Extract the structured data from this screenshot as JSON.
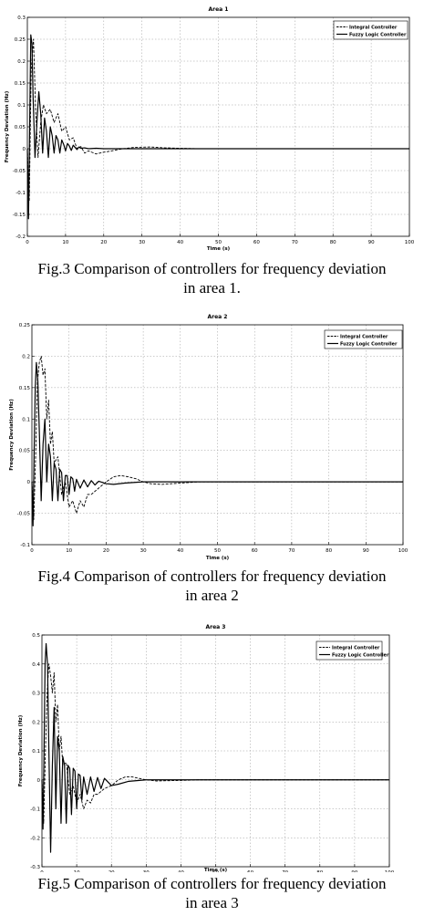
{
  "chart_data": [
    {
      "type": "line",
      "title": "Area 1",
      "xlabel": "Time (s)",
      "ylabel": "Frequency Deviation (Hz)",
      "xlim": [
        0,
        100
      ],
      "ylim": [
        -0.2,
        0.3
      ],
      "xticks": [
        0,
        10,
        20,
        30,
        40,
        50,
        60,
        70,
        80,
        90,
        100
      ],
      "yticks": [
        -0.2,
        -0.15,
        -0.1,
        -0.05,
        0,
        0.05,
        0.1,
        0.15,
        0.2,
        0.25,
        0.3
      ],
      "yticklabels": [
        "-0.2",
        "-0.15",
        "-0.1",
        "-0.05",
        "0",
        "0.05",
        "0.1",
        "0.15",
        "0.2",
        "0.25",
        "0.3"
      ],
      "grid": true,
      "legend": "top-right",
      "series": [
        {
          "name": "Integral Controller",
          "style": "dashed",
          "x": [
            0,
            0.5,
            1.0,
            1.6,
            2.2,
            2.8,
            3.5,
            4.2,
            5.0,
            6.0,
            7.0,
            8.0,
            9.0,
            10.0,
            11.0,
            12.0,
            13.0,
            14.0,
            15.0,
            16.0,
            18.0,
            20.0,
            22.0,
            25.0,
            28.0,
            32.0,
            36.0,
            40.0,
            45.0,
            50.0,
            55.0,
            60.0,
            70.0,
            80.0,
            90.0,
            100.0
          ],
          "y": [
            0,
            -0.12,
            0.18,
            0.25,
            0.08,
            -0.02,
            0.06,
            0.1,
            0.08,
            0.09,
            0.06,
            0.08,
            0.04,
            0.05,
            0.02,
            0.025,
            0.0,
            0.005,
            -0.01,
            -0.005,
            -0.012,
            -0.008,
            -0.005,
            0.0,
            0.003,
            0.004,
            0.002,
            0.001,
            0.0,
            0.0,
            0.0,
            0.0,
            0.0,
            0.0,
            0.0,
            0.0
          ]
        },
        {
          "name": "Fuzzy Logic Controller",
          "style": "solid",
          "x": [
            0,
            0.3,
            0.6,
            0.9,
            1.2,
            1.5,
            2.0,
            2.5,
            3.0,
            3.5,
            4.0,
            4.5,
            5.0,
            5.5,
            6.0,
            6.5,
            7.0,
            7.5,
            8.0,
            8.5,
            9.0,
            9.5,
            10.0,
            10.5,
            11.0,
            11.5,
            12.0,
            12.5,
            13.0,
            13.5,
            14.0,
            15.0,
            16.0,
            18.0,
            20.0,
            25.0,
            30.0,
            40.0,
            50.0,
            60.0,
            70.0,
            80.0,
            90.0,
            100.0
          ],
          "y": [
            0,
            -0.16,
            0.05,
            0.26,
            0.24,
            0.12,
            -0.02,
            0.06,
            0.13,
            0.08,
            -0.01,
            0.07,
            0.04,
            -0.02,
            0.05,
            0.03,
            -0.01,
            0.03,
            0.02,
            -0.01,
            0.02,
            0.01,
            -0.005,
            0.012,
            0.006,
            -0.004,
            0.008,
            0.003,
            -0.002,
            0.004,
            0.001,
            0.002,
            0.0,
            0.001,
            0.0,
            0.0,
            0.0,
            0.0,
            0.0,
            0.0,
            0.0,
            0.0,
            0.0,
            0.0
          ]
        }
      ]
    },
    {
      "type": "line",
      "title": "Area 2",
      "xlabel": "Time (s)",
      "ylabel": "Frequency Deviation (Hz)",
      "xlim": [
        0,
        100
      ],
      "ylim": [
        -0.1,
        0.25
      ],
      "xticks": [
        0,
        10,
        20,
        30,
        40,
        50,
        60,
        70,
        80,
        90,
        100
      ],
      "yticks": [
        -0.1,
        -0.05,
        0,
        0.05,
        0.1,
        0.15,
        0.2,
        0.25
      ],
      "yticklabels": [
        "-0.1",
        "-0.05",
        "0",
        "0.05",
        "0.1",
        "0.15",
        "0.2",
        "0.25"
      ],
      "grid": true,
      "legend": "top-right",
      "series": [
        {
          "name": "Integral Controller",
          "style": "dashed",
          "x": [
            0,
            0.5,
            1.0,
            1.5,
            2.0,
            2.5,
            3.0,
            3.5,
            4.0,
            4.5,
            5.0,
            5.5,
            6.0,
            7.0,
            8.0,
            9.0,
            10.0,
            11.0,
            12.0,
            13.0,
            14.0,
            15.0,
            16.0,
            18.0,
            20.0,
            22.0,
            24.0,
            26.0,
            28.0,
            30.0,
            32.0,
            35.0,
            40.0,
            45.0,
            50.0,
            60.0,
            70.0,
            80.0,
            90.0,
            100.0
          ],
          "y": [
            0,
            -0.06,
            0.04,
            0.16,
            0.19,
            0.2,
            0.17,
            0.18,
            0.1,
            0.13,
            0.06,
            0.08,
            0.03,
            0.04,
            -0.02,
            0.0,
            -0.04,
            -0.03,
            -0.05,
            -0.03,
            -0.04,
            -0.02,
            -0.02,
            -0.01,
            0.0,
            0.008,
            0.01,
            0.008,
            0.005,
            0.0,
            -0.003,
            -0.004,
            -0.002,
            0.0,
            0.0,
            0.0,
            0.0,
            0.0,
            0.0,
            0.0
          ]
        },
        {
          "name": "Fuzzy Logic Controller",
          "style": "solid",
          "x": [
            0,
            0.3,
            0.6,
            0.9,
            1.2,
            1.6,
            2.0,
            2.5,
            3.0,
            3.5,
            4.0,
            4.5,
            5.0,
            5.5,
            6.0,
            6.5,
            7.0,
            7.5,
            8.0,
            8.5,
            9.0,
            9.5,
            10.0,
            10.5,
            11.0,
            11.5,
            12.0,
            13.0,
            14.0,
            15.0,
            16.0,
            17.0,
            18.0,
            20.0,
            22.0,
            25.0,
            30.0,
            40.0,
            50.0,
            60.0,
            70.0,
            80.0,
            90.0,
            100.0
          ],
          "y": [
            0,
            -0.07,
            0.05,
            0.15,
            0.19,
            0.16,
            0.08,
            -0.03,
            0.06,
            0.1,
            0.0,
            0.06,
            0.04,
            -0.03,
            0.03,
            0.02,
            -0.03,
            0.02,
            0.015,
            -0.03,
            0.01,
            0.01,
            -0.02,
            0.008,
            0.005,
            -0.015,
            0.004,
            -0.01,
            0.003,
            -0.008,
            0.002,
            -0.005,
            0.001,
            -0.003,
            -0.004,
            -0.002,
            0.0,
            0.0,
            0.0,
            0.0,
            0.0,
            0.0,
            0.0,
            0.0
          ]
        }
      ]
    },
    {
      "type": "line",
      "title": "Area 3",
      "xlabel": "Time (s)",
      "ylabel": "Frequency Deviation (Hz)",
      "xlim": [
        0,
        100
      ],
      "ylim": [
        -0.3,
        0.5
      ],
      "xticks": [
        0,
        10,
        20,
        30,
        40,
        50,
        60,
        70,
        80,
        90,
        100
      ],
      "yticks": [
        -0.3,
        -0.2,
        -0.1,
        0,
        0.1,
        0.2,
        0.3,
        0.4,
        0.5
      ],
      "yticklabels": [
        "-0.3",
        "-0.2",
        "-0.1",
        "0",
        "0.1",
        "0.2",
        "0.3",
        "0.4",
        "0.5"
      ],
      "grid": true,
      "legend": "top-right",
      "series": [
        {
          "name": "Integral Controller",
          "style": "dashed",
          "x": [
            0,
            0.5,
            1.0,
            1.5,
            2.0,
            2.5,
            3.0,
            3.5,
            4.0,
            4.5,
            5.0,
            5.5,
            6.0,
            7.0,
            8.0,
            9.0,
            10.0,
            11.0,
            12.0,
            13.0,
            14.0,
            15.0,
            16.0,
            18.0,
            20.0,
            22.0,
            24.0,
            26.0,
            28.0,
            30.0,
            33.0,
            36.0,
            40.0,
            45.0,
            50.0,
            60.0,
            70.0,
            80.0,
            90.0,
            100.0
          ],
          "y": [
            0,
            -0.15,
            0.1,
            0.3,
            0.4,
            0.36,
            0.3,
            0.37,
            0.2,
            0.26,
            0.1,
            0.15,
            0.05,
            0.06,
            -0.05,
            -0.02,
            -0.08,
            -0.05,
            -0.1,
            -0.07,
            -0.08,
            -0.05,
            -0.05,
            -0.03,
            -0.02,
            0.0,
            0.01,
            0.01,
            0.005,
            0.0,
            -0.004,
            -0.003,
            -0.002,
            0.0,
            0.0,
            0.0,
            0.0,
            0.0,
            0.0,
            0.0
          ]
        },
        {
          "name": "Fuzzy Logic Controller",
          "style": "solid",
          "x": [
            0,
            0.3,
            0.6,
            0.9,
            1.2,
            1.6,
            2.0,
            2.5,
            3.0,
            3.5,
            4.0,
            4.5,
            5.0,
            5.5,
            6.0,
            6.5,
            7.0,
            7.5,
            8.0,
            8.5,
            9.0,
            9.5,
            10.0,
            10.5,
            11.0,
            11.5,
            12.0,
            13.0,
            14.0,
            15.0,
            16.0,
            17.0,
            18.0,
            20.0,
            22.0,
            25.0,
            30.0,
            40.0,
            50.0,
            60.0,
            70.0,
            80.0,
            90.0,
            100.0
          ],
          "y": [
            0,
            -0.17,
            0.1,
            0.4,
            0.47,
            0.4,
            0.1,
            -0.25,
            0.05,
            0.25,
            -0.1,
            0.15,
            0.1,
            -0.15,
            0.08,
            0.05,
            -0.15,
            0.05,
            0.04,
            -0.12,
            0.04,
            0.03,
            -0.1,
            0.02,
            0.015,
            -0.07,
            0.01,
            -0.05,
            0.01,
            -0.04,
            0.008,
            -0.03,
            0.005,
            -0.02,
            -0.015,
            -0.005,
            0.0,
            0.0,
            0.0,
            0.0,
            0.0,
            0.0,
            0.0,
            0.0
          ]
        }
      ]
    }
  ],
  "captions": [
    [
      "Fig.3 Comparison of controllers for frequency deviation",
      "in area 1."
    ],
    [
      "Fig.4 Comparison of controllers for frequency deviation",
      "in area 2"
    ],
    [
      "Fig.5 Comparison of controllers for frequency deviation",
      "in area 3"
    ]
  ]
}
